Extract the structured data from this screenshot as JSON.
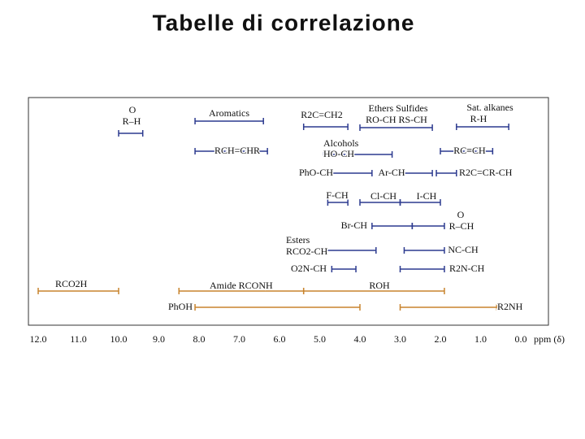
{
  "title": "Tabelle di correlazione",
  "axis": {
    "label": "ppm (δ)",
    "ticks": [
      {
        "value": 12,
        "label": "12.0"
      },
      {
        "value": 11,
        "label": "11.0"
      },
      {
        "value": 10,
        "label": "10.0"
      },
      {
        "value": 9,
        "label": "9.0"
      },
      {
        "value": 8,
        "label": "8.0"
      },
      {
        "value": 7,
        "label": "7.0"
      },
      {
        "value": 6,
        "label": "6.0"
      },
      {
        "value": 5,
        "label": "5.0"
      },
      {
        "value": 4,
        "label": "4.0"
      },
      {
        "value": 3,
        "label": "3.0"
      },
      {
        "value": 2,
        "label": "2.0"
      },
      {
        "value": 1,
        "label": "1.0"
      },
      {
        "value": 0,
        "label": "0.0"
      }
    ]
  },
  "ranges": [
    {
      "note": "O",
      "label": "R–H",
      "from": 10.0,
      "to": 9.4,
      "color": "#2c3a8f"
    },
    {
      "label": "Aromatics",
      "from": 8.1,
      "to": 6.4,
      "color": "#2c3a8f"
    },
    {
      "label": "R2C=CH2",
      "from": 5.4,
      "to": 4.3,
      "color": "#2c3a8f"
    },
    {
      "note": "Ethers  Sulfides",
      "label": "RO-CH RS-CH",
      "from": 4.0,
      "to": 2.2,
      "color": "#2c3a8f"
    },
    {
      "note": "Sat. alkanes",
      "label": "R-H",
      "from": 1.6,
      "to": 0.3,
      "color": "#2c3a8f"
    },
    {
      "label": "RCH=CHR",
      "from": 8.1,
      "to": 6.3,
      "color": "#2c3a8f"
    },
    {
      "note": "Alcohols",
      "label": "HO-CH",
      "from": 4.9,
      "to": 3.2,
      "color": "#2c3a8f"
    },
    {
      "label": "RC≡CH",
      "from": 2.0,
      "to": 0.7,
      "color": "#2c3a8f"
    },
    {
      "label": "PhO-CH",
      "from": 4.7,
      "to": 3.7,
      "color": "#2c3a8f"
    },
    {
      "label": "Ar-CH",
      "from": 3.0,
      "to": 2.2,
      "color": "#2c3a8f"
    },
    {
      "label": "R2C=CR-CH",
      "from": 2.1,
      "to": 1.6,
      "color": "#2c3a8f"
    },
    {
      "label": "F-CH",
      "from": 4.8,
      "to": 4.3,
      "color": "#2c3a8f"
    },
    {
      "label": "Cl-CH",
      "from": 4.0,
      "to": 3.0,
      "color": "#2c3a8f"
    },
    {
      "label": "I-CH",
      "from": 3.0,
      "to": 2.0,
      "color": "#2c3a8f"
    },
    {
      "label": "Br-CH",
      "from": 3.7,
      "to": 2.7,
      "color": "#2c3a8f"
    },
    {
      "note": "O",
      "label": "R–CH",
      "from": 2.7,
      "to": 1.9,
      "color": "#2c3a8f"
    },
    {
      "note": "Esters",
      "label": "RCO2-CH",
      "from": 4.9,
      "to": 3.6,
      "color": "#2c3a8f"
    },
    {
      "label": "NC-CH",
      "from": 2.9,
      "to": 1.9,
      "color": "#2c3a8f"
    },
    {
      "label": "O2N-CH",
      "from": 4.7,
      "to": 4.1,
      "color": "#2c3a8f"
    },
    {
      "label": "R2N-CH",
      "from": 3.0,
      "to": 1.9,
      "color": "#2c3a8f"
    },
    {
      "label": "RCO2H",
      "from": 12.0,
      "to": 10.0,
      "color": "#c8842e"
    },
    {
      "label": "Amide RCONH",
      "from": 8.5,
      "to": 5.4,
      "color": "#c8842e"
    },
    {
      "label": "ROH",
      "from": 5.4,
      "to": 1.9,
      "color": "#c8842e"
    },
    {
      "label": "PhOH",
      "from": 8.1,
      "to": 4.0,
      "color": "#c8842e"
    },
    {
      "label": "R2NH",
      "from": 3.0,
      "to": 0.6,
      "color": "#c8842e"
    }
  ]
}
